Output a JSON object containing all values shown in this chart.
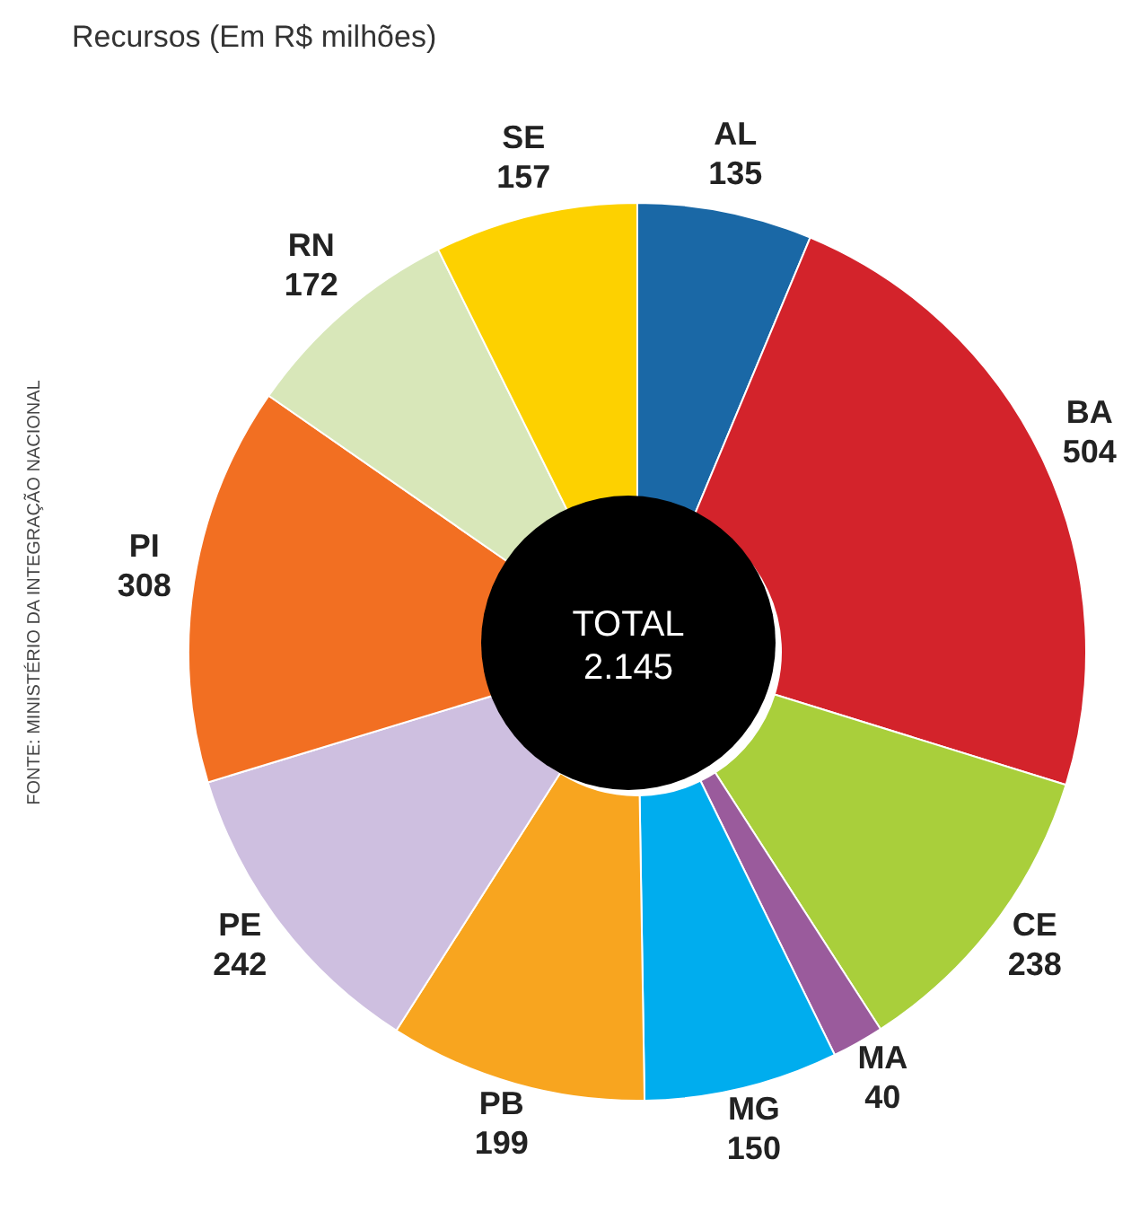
{
  "chart_data": {
    "type": "donut",
    "title": "Recursos (Em R$ milhões)",
    "categories": [
      "AL",
      "BA",
      "CE",
      "MA",
      "MG",
      "PB",
      "PE",
      "PI",
      "RN",
      "SE"
    ],
    "values": [
      135,
      504,
      238,
      40,
      150,
      199,
      242,
      308,
      172,
      157
    ],
    "colors": [
      "#1a68a6",
      "#d3232b",
      "#a9cf3b",
      "#9a5b9c",
      "#00adee",
      "#f8a51f",
      "#cebfe0",
      "#f26f22",
      "#d8e7b9",
      "#fdd100"
    ],
    "data_labels": true,
    "annotations": [
      "TOTAL 2.145",
      "FONTE: MINISTÉRIO DA INTEGRAÇÃO NACIONAL"
    ]
  }
}
